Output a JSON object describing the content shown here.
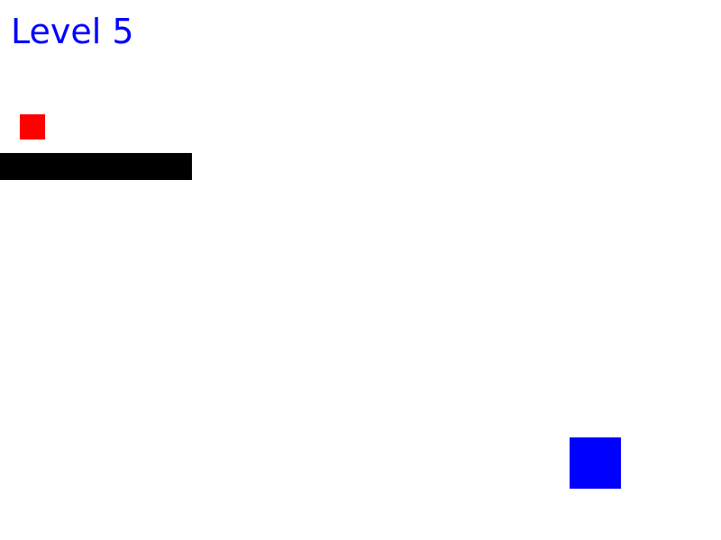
{
  "hud": {
    "level_label": "Level 5"
  },
  "colors": {
    "background": "#ffffff",
    "level_text": "#0000ff",
    "player": "#ff0000",
    "platform": "#000000",
    "goal": "#0000ff"
  },
  "entities": {
    "player": "red-square",
    "platform": "black-bar",
    "goal": "blue-square"
  }
}
